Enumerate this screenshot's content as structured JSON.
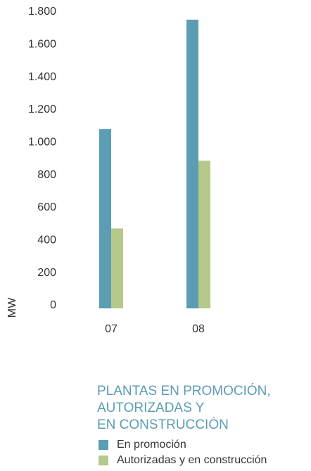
{
  "chart_data": {
    "type": "bar",
    "title": [
      "PLANTAS EN PROMOCIÓN,",
      "AUTORIZADAS Y",
      "EN CONSTRUCCIÓN"
    ],
    "y_label": "MW",
    "categories": [
      "07",
      "08"
    ],
    "series": [
      {
        "name": "En promoción",
        "color": "#5b9db3",
        "values": [
          1100,
          1770
        ]
      },
      {
        "name": "Autorizadas y en construcción",
        "color": "#b5c98a",
        "values": [
          490,
          905
        ]
      }
    ],
    "ylim": [
      0,
      1800
    ],
    "yticks": [
      0,
      200,
      400,
      600,
      800,
      {
        "value": 1000,
        "label": "1.000"
      },
      {
        "value": 1200,
        "label": "1.200"
      },
      {
        "value": 1400,
        "label": "1.400"
      },
      {
        "value": 1600,
        "label": "1.600"
      },
      {
        "value": 1800,
        "label": "1.800"
      }
    ],
    "grid": false
  }
}
